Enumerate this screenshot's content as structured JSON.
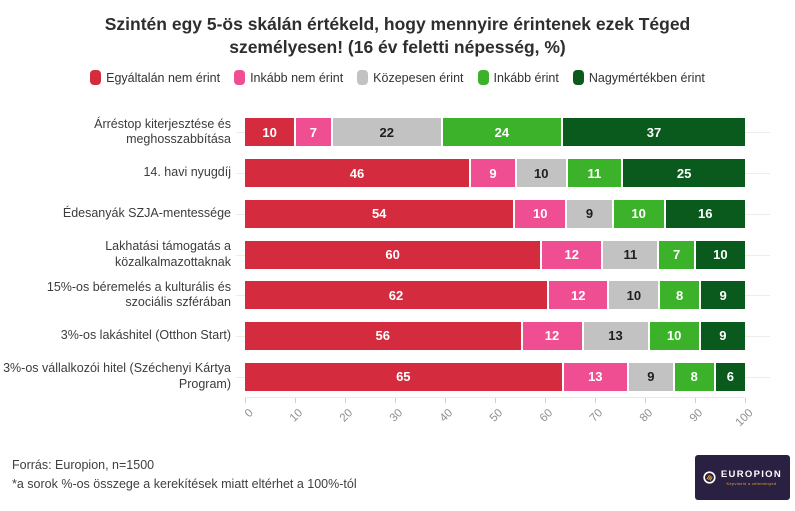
{
  "title": "Szintén egy 5-ös skálán értékeld, hogy mennyire érintenek ezek Téged személyesen! (16 év feletti népesség, %)",
  "chart_data": {
    "type": "bar",
    "orientation": "horizontal-stacked",
    "title": "Szintén egy 5-ös skálán értékeld, hogy mennyire érintenek ezek Téged személyesen! (16 év feletti népesség, %)",
    "legend_position": "top",
    "grid": "light",
    "xlim": [
      0,
      100
    ],
    "x_ticks": [
      0,
      10,
      20,
      30,
      40,
      50,
      60,
      70,
      80,
      90,
      100
    ],
    "categories": [
      "Árréstop kiterjesztése és meghosszabbítása",
      "14. havi nyugdíj",
      "Édesanyák SZJA-mentessége",
      "Lakhatási támogatás a közalkalmazottaknak",
      "15%-os béremelés a kulturális és szociális szférában",
      "3%-os lakáshitel (Otthon Start)",
      "3%-os vállalkozói hitel (Széchenyi Kártya Program)"
    ],
    "series": [
      {
        "name": "Egyáltalán nem érint",
        "color": "#d52b3e",
        "label_color": "#ffffff",
        "values": [
          10,
          46,
          54,
          60,
          62,
          56,
          65
        ]
      },
      {
        "name": "Inkább nem érint",
        "color": "#f04e93",
        "label_color": "#ffffff",
        "values": [
          7,
          9,
          10,
          12,
          12,
          12,
          13
        ]
      },
      {
        "name": "Közepesen érint",
        "color": "#c2c2c2",
        "label_color": "#1e1e1e",
        "values": [
          22,
          10,
          9,
          11,
          10,
          13,
          9
        ]
      },
      {
        "name": "Inkább érint",
        "color": "#3cb22b",
        "label_color": "#ffffff",
        "values": [
          24,
          11,
          10,
          7,
          8,
          10,
          8
        ]
      },
      {
        "name": "Nagymértékben érint",
        "color": "#0b5a1d",
        "label_color": "#ffffff",
        "values": [
          37,
          25,
          16,
          10,
          9,
          9,
          6
        ]
      }
    ]
  },
  "footer": {
    "source": "Forrás: Europion, n=1500",
    "note": "*a sorok %-os összege a kerekítések miatt eltérhet a 100%-tól"
  },
  "logo": {
    "name": "EUROPION",
    "tagline": "Képviseld a véleményed",
    "bg_color": "#2a2042",
    "accent_color": "#e3a02f"
  }
}
